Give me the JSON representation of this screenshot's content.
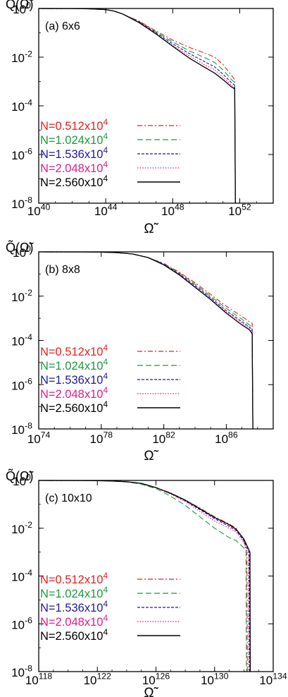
{
  "figure": {
    "legend_sample_styles": [
      "dashdot",
      "dashed",
      "dotted-dashed",
      "dotted",
      "solid"
    ],
    "series_colors": [
      "#e8201c",
      "#1a9a3c",
      "#1f1a9a",
      "#e61b8a",
      "#000000"
    ]
  },
  "chart_data": [
    {
      "type": "line",
      "panel_label": "(a) 6x6",
      "ylabel": "Q̃(Ω̃)",
      "xlabel": "Ω̃",
      "xscale": "log",
      "yscale": "log",
      "xlim": [
        1e+40,
        1e+54
      ],
      "ylim": [
        1e-08,
        1
      ],
      "x_ticks": [
        {
          "mant": "10",
          "exp": "40"
        },
        {
          "mant": "10",
          "exp": "44"
        },
        {
          "mant": "10",
          "exp": "48"
        },
        {
          "mant": "10",
          "exp": "52"
        }
      ],
      "y_ticks": [
        {
          "mant": "10",
          "exp": "0"
        },
        {
          "mant": "10",
          "exp": "-2"
        },
        {
          "mant": "10",
          "exp": "-4"
        },
        {
          "mant": "10",
          "exp": "-6"
        },
        {
          "mant": "10",
          "exp": "-8"
        }
      ],
      "legend_position": "left",
      "series": [
        {
          "name": "N=0.512x10",
          "name_exp": "4",
          "x": [
            1e+40,
            1e+42,
            1e+43,
            1e+44,
            3.2e+44,
            1e+45,
            1e+46,
            1e+47,
            1e+48,
            1e+49,
            1e+50,
            3.2e+50,
            1e+51,
            3.2e+51,
            5e+51,
            5.5e+51
          ],
          "y": [
            1,
            0.995,
            0.97,
            0.9,
            0.78,
            0.6,
            0.3,
            0.12,
            0.05,
            0.025,
            0.014,
            0.01,
            0.005,
            0.0018,
            0.0012,
            1e-08
          ]
        },
        {
          "name": "N=1.024x10",
          "name_exp": "4",
          "x": [
            1e+40,
            1e+42,
            1e+43,
            1e+44,
            3.2e+44,
            1e+45,
            1e+46,
            1e+47,
            1e+48,
            1e+49,
            1e+50,
            3.2e+50,
            1e+51,
            3.2e+51,
            5e+51,
            5.5e+51
          ],
          "y": [
            1,
            0.995,
            0.97,
            0.9,
            0.78,
            0.6,
            0.29,
            0.11,
            0.042,
            0.018,
            0.009,
            0.006,
            0.003,
            0.0012,
            0.0009,
            1e-08
          ]
        },
        {
          "name": "N=1.536x10",
          "name_exp": "4",
          "x": [
            1e+40,
            1e+42,
            1e+43,
            1e+44,
            3.2e+44,
            1e+45,
            1e+46,
            1e+47,
            1e+48,
            1e+49,
            1e+50,
            3.2e+50,
            1e+51,
            3.2e+51,
            5e+51,
            5.5e+51
          ],
          "y": [
            1,
            0.995,
            0.97,
            0.9,
            0.78,
            0.6,
            0.28,
            0.1,
            0.035,
            0.014,
            0.006,
            0.004,
            0.002,
            0.0009,
            0.0007,
            1e-08
          ]
        },
        {
          "name": "N=2.048x10",
          "name_exp": "4",
          "x": [
            1e+40,
            1e+42,
            1e+43,
            1e+44,
            3.2e+44,
            1e+45,
            1e+46,
            1e+47,
            1e+48,
            1e+49,
            1e+50,
            3.2e+50,
            1e+51,
            3.2e+51,
            5e+51,
            5.5e+51
          ],
          "y": [
            1,
            0.995,
            0.97,
            0.9,
            0.78,
            0.6,
            0.27,
            0.095,
            0.03,
            0.011,
            0.0045,
            0.003,
            0.0015,
            0.0007,
            0.00055,
            1e-08
          ]
        },
        {
          "name": "N=2.560x10",
          "name_exp": "4",
          "x": [
            1e+40,
            1e+42,
            1e+43,
            1e+44,
            3.2e+44,
            1e+45,
            1e+46,
            1e+47,
            1e+48,
            1e+49,
            1e+50,
            3.2e+50,
            1e+51,
            3.2e+51,
            5e+51,
            5.5e+51
          ],
          "y": [
            1,
            0.995,
            0.97,
            0.9,
            0.78,
            0.6,
            0.26,
            0.09,
            0.028,
            0.009,
            0.0035,
            0.0022,
            0.0012,
            0.0006,
            0.0005,
            1e-08
          ]
        }
      ]
    },
    {
      "type": "line",
      "panel_label": "(b) 8x8",
      "ylabel": "Q̃(Ω̃)",
      "xlabel": "Ω̃",
      "xscale": "log",
      "yscale": "log",
      "xlim": [
        1e+74,
        1e+89
      ],
      "ylim": [
        1e-08,
        1
      ],
      "x_ticks": [
        {
          "mant": "10",
          "exp": "74"
        },
        {
          "mant": "10",
          "exp": "78"
        },
        {
          "mant": "10",
          "exp": "82"
        },
        {
          "mant": "10",
          "exp": "86"
        }
      ],
      "y_ticks": [
        {
          "mant": "10",
          "exp": "0"
        },
        {
          "mant": "10",
          "exp": "-2"
        },
        {
          "mant": "10",
          "exp": "-4"
        },
        {
          "mant": "10",
          "exp": "-6"
        },
        {
          "mant": "10",
          "exp": "-8"
        }
      ],
      "legend_position": "left",
      "series": [
        {
          "name": "N=0.512x10",
          "name_exp": "4",
          "x": [
            1e+74,
            1e+77,
            1e+78,
            1e+79,
            1e+80,
            1e+81,
            1e+82,
            1e+83,
            1e+84,
            1e+85,
            1e+86,
            1e+87,
            3e+87,
            4.5e+87,
            5e+87
          ],
          "y": [
            1,
            0.995,
            0.97,
            0.92,
            0.8,
            0.55,
            0.3,
            0.12,
            0.04,
            0.012,
            0.0035,
            0.0012,
            0.0007,
            0.0006,
            1e-08
          ]
        },
        {
          "name": "N=1.024x10",
          "name_exp": "4",
          "x": [
            1e+74,
            1e+77,
            1e+78,
            1e+79,
            1e+80,
            1e+81,
            1e+82,
            1e+83,
            1e+84,
            1e+85,
            1e+86,
            1e+87,
            3e+87,
            4.5e+87,
            5e+87
          ],
          "y": [
            1,
            0.995,
            0.97,
            0.92,
            0.8,
            0.55,
            0.29,
            0.11,
            0.035,
            0.01,
            0.0028,
            0.0009,
            0.0005,
            0.0004,
            1e-08
          ]
        },
        {
          "name": "N=1.536x10",
          "name_exp": "4",
          "x": [
            1e+74,
            1e+77,
            1e+78,
            1e+79,
            1e+80,
            1e+81,
            1e+82,
            1e+83,
            1e+84,
            1e+85,
            1e+86,
            1e+87,
            3e+87,
            4.5e+87,
            5e+87
          ],
          "y": [
            1,
            0.995,
            0.97,
            0.92,
            0.8,
            0.55,
            0.28,
            0.1,
            0.03,
            0.0085,
            0.0022,
            0.0007,
            0.0004,
            0.0003,
            1e-08
          ]
        },
        {
          "name": "N=2.048x10",
          "name_exp": "4",
          "x": [
            1e+74,
            1e+77,
            1e+78,
            1e+79,
            1e+80,
            1e+81,
            1e+82,
            1e+83,
            1e+84,
            1e+85,
            1e+86,
            1e+87,
            3e+87,
            4.5e+87,
            5e+87
          ],
          "y": [
            1,
            0.995,
            0.97,
            0.92,
            0.8,
            0.55,
            0.27,
            0.095,
            0.027,
            0.0075,
            0.0019,
            0.0006,
            0.00035,
            0.00025,
            1e-08
          ]
        },
        {
          "name": "N=2.560x10",
          "name_exp": "4",
          "x": [
            1e+74,
            1e+77,
            1e+78,
            1e+79,
            1e+80,
            1e+81,
            1e+82,
            1e+83,
            1e+84,
            1e+85,
            1e+86,
            1e+87,
            3e+87,
            4.5e+87,
            5e+87
          ],
          "y": [
            1,
            0.995,
            0.97,
            0.92,
            0.8,
            0.55,
            0.26,
            0.09,
            0.025,
            0.007,
            0.0017,
            0.0005,
            0.0003,
            0.0002,
            1e-08
          ]
        }
      ]
    },
    {
      "type": "line",
      "panel_label": "(c) 10x10",
      "ylabel": "Q̃(Ω̃)",
      "xlabel": "Ω̃",
      "xscale": "log",
      "yscale": "log",
      "xlim": [
        1e+118,
        1e+134
      ],
      "ylim": [
        1e-08,
        1
      ],
      "x_ticks": [
        {
          "mant": "10",
          "exp": "118"
        },
        {
          "mant": "10",
          "exp": "122"
        },
        {
          "mant": "10",
          "exp": "126"
        },
        {
          "mant": "10",
          "exp": "130"
        },
        {
          "mant": "10",
          "exp": "134"
        }
      ],
      "y_ticks": [
        {
          "mant": "10",
          "exp": "0"
        },
        {
          "mant": "10",
          "exp": "-2"
        },
        {
          "mant": "10",
          "exp": "-4"
        },
        {
          "mant": "10",
          "exp": "-6"
        },
        {
          "mant": "10",
          "exp": "-8"
        }
      ],
      "legend_position": "left",
      "series": [
        {
          "name": "N=0.512x10",
          "name_exp": "4",
          "x": [
            1e+118,
            1e+121,
            1e+122,
            1e+123,
            1e+124,
            1e+125,
            1e+126,
            1e+127,
            1e+128,
            1e+129,
            1e+130,
            1e+131,
            3e+131,
            1e+132,
            1.6e+132,
            1.7e+132
          ],
          "y": [
            1,
            0.995,
            0.98,
            0.95,
            0.88,
            0.75,
            0.5,
            0.3,
            0.15,
            0.07,
            0.03,
            0.015,
            0.01,
            0.003,
            0.0008,
            1e-08
          ]
        },
        {
          "name": "N=1.024x10",
          "name_exp": "4",
          "x": [
            1e+118,
            1e+121,
            1e+122,
            1e+123,
            1e+124,
            1e+125,
            1e+126,
            1e+127,
            1e+128,
            1e+129,
            1e+130,
            1e+131,
            3e+131,
            1e+132,
            1.4e+132,
            1.5e+132
          ],
          "y": [
            1,
            0.995,
            0.98,
            0.94,
            0.86,
            0.7,
            0.45,
            0.22,
            0.09,
            0.03,
            0.01,
            0.004,
            0.003,
            0.0015,
            0.0012,
            1e-08
          ]
        },
        {
          "name": "N=1.536x10",
          "name_exp": "4",
          "x": [
            1e+118,
            1e+121,
            1e+122,
            1e+123,
            1e+124,
            1e+125,
            1e+126,
            1e+127,
            1e+128,
            1e+129,
            1e+130,
            1e+131,
            3e+131,
            1e+132,
            2.3e+132,
            2.4e+132
          ],
          "y": [
            1,
            0.995,
            0.98,
            0.95,
            0.88,
            0.74,
            0.5,
            0.28,
            0.14,
            0.06,
            0.025,
            0.012,
            0.008,
            0.003,
            0.0009,
            1e-08
          ]
        },
        {
          "name": "N=2.048x10",
          "name_exp": "4",
          "x": [
            1e+118,
            1e+121,
            1e+122,
            1e+123,
            1e+124,
            1e+125,
            1e+126,
            1e+127,
            1e+128,
            1e+129,
            1e+130,
            1e+131,
            3e+131,
            1e+132,
            2e+132,
            2.1e+132
          ],
          "y": [
            1,
            0.995,
            0.98,
            0.95,
            0.88,
            0.74,
            0.49,
            0.27,
            0.13,
            0.05,
            0.02,
            0.01,
            0.007,
            0.0025,
            0.0008,
            1e-08
          ]
        },
        {
          "name": "N=2.560x10",
          "name_exp": "4",
          "x": [
            1e+118,
            1e+121,
            1e+122,
            1e+123,
            1e+124,
            1e+125,
            1e+126,
            1e+127,
            1e+128,
            1e+129,
            1e+130,
            1e+131,
            3e+131,
            1e+132,
            2.6e+132,
            2.7e+132
          ],
          "y": [
            1,
            0.995,
            0.98,
            0.95,
            0.88,
            0.75,
            0.5,
            0.29,
            0.15,
            0.065,
            0.028,
            0.014,
            0.009,
            0.0035,
            0.001,
            1e-08
          ]
        }
      ]
    }
  ]
}
